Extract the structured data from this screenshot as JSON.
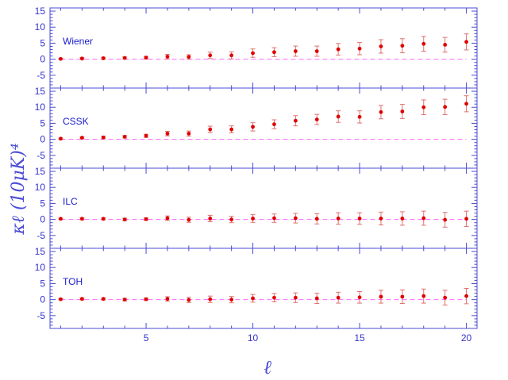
{
  "chart_data": {
    "type": "scatter",
    "xlabel": "ℓ",
    "ylabel": "𝜅ℓ (10μK)⁴",
    "xlim": [
      0.5,
      20.5
    ],
    "ylim": [
      -9,
      16
    ],
    "x_ticks": [
      "5",
      "10",
      "15",
      "20"
    ],
    "y_ticks": [
      "-5",
      "0",
      "5",
      "10",
      "15"
    ],
    "reference_line": 0,
    "colors": {
      "axis": "#4b4bd6",
      "points": "#e00000",
      "errorbars": "#e07070",
      "zero_line": "#ff66ff"
    },
    "x": [
      1,
      2,
      3,
      4,
      5,
      6,
      7,
      8,
      9,
      10,
      11,
      12,
      13,
      14,
      15,
      16,
      17,
      18,
      19,
      20
    ],
    "panels": [
      {
        "label": "Wiener",
        "values": [
          0.1,
          0.2,
          0.3,
          0.4,
          0.5,
          0.8,
          0.7,
          1.2,
          1.2,
          1.9,
          2.2,
          2.5,
          2.5,
          3.1,
          3.3,
          4.0,
          4.2,
          4.8,
          4.5,
          5.4
        ],
        "errors": [
          0.2,
          0.3,
          0.3,
          0.3,
          0.4,
          0.7,
          0.7,
          1.0,
          1.1,
          1.3,
          1.4,
          1.6,
          1.6,
          1.8,
          1.9,
          2.1,
          2.2,
          2.3,
          2.3,
          2.5
        ]
      },
      {
        "label": "CSSK",
        "values": [
          0.2,
          0.5,
          0.6,
          0.8,
          1.1,
          1.8,
          1.8,
          3.1,
          3.1,
          3.9,
          4.7,
          5.8,
          6.2,
          7.1,
          7.0,
          8.5,
          8.7,
          10.0,
          10.1,
          11.1
        ],
        "errors": [
          0.2,
          0.3,
          0.4,
          0.4,
          0.5,
          0.7,
          0.8,
          1.0,
          1.1,
          1.3,
          1.4,
          1.6,
          1.6,
          1.8,
          1.9,
          2.1,
          2.2,
          2.3,
          2.4,
          2.5
        ]
      },
      {
        "label": "ILC",
        "values": [
          0.2,
          0.2,
          0.2,
          0.0,
          0.1,
          0.4,
          -0.1,
          0.3,
          0.0,
          0.3,
          0.4,
          0.4,
          0.2,
          0.3,
          0.3,
          0.3,
          0.3,
          0.4,
          -0.1,
          0.2
        ],
        "errors": [
          0.2,
          0.3,
          0.3,
          0.4,
          0.4,
          0.7,
          0.8,
          1.0,
          1.0,
          1.2,
          1.3,
          1.5,
          1.6,
          1.8,
          1.8,
          2.0,
          2.1,
          2.2,
          2.3,
          2.4
        ]
      },
      {
        "label": "TOH",
        "values": [
          0.1,
          0.2,
          0.2,
          0.0,
          0.1,
          0.2,
          -0.1,
          0.1,
          0.0,
          0.4,
          0.6,
          0.6,
          0.4,
          0.6,
          0.7,
          0.9,
          0.9,
          1.1,
          0.6,
          1.1
        ],
        "errors": [
          0.2,
          0.3,
          0.3,
          0.4,
          0.4,
          0.7,
          0.8,
          1.0,
          1.0,
          1.2,
          1.3,
          1.5,
          1.6,
          1.7,
          1.8,
          2.0,
          2.1,
          2.2,
          2.3,
          2.4
        ]
      }
    ]
  }
}
